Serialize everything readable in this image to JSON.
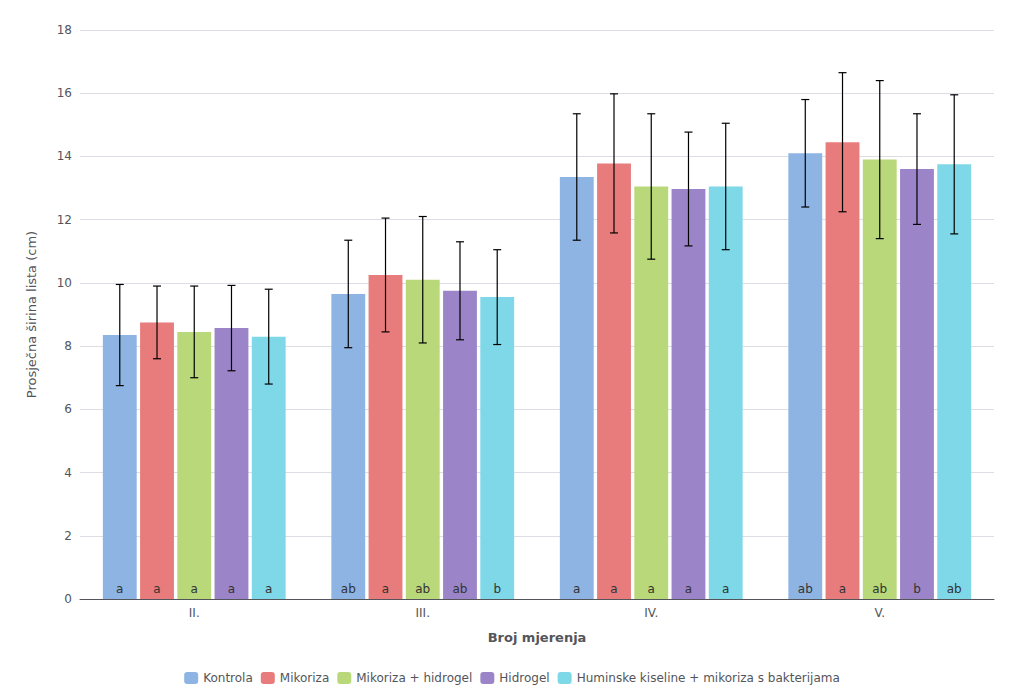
{
  "chart_data": {
    "type": "bar",
    "xlabel": "Broj mjerenja",
    "ylabel": "Prosječna širina lista (cm)",
    "categories": [
      "II.",
      "III.",
      "IV.",
      "V."
    ],
    "series": [
      {
        "name": "Kontrola",
        "color": "#8EB4E3",
        "values": [
          8.35,
          9.65,
          13.35,
          14.1
        ],
        "errors": [
          1.6,
          1.7,
          2.0,
          1.7
        ],
        "labels": [
          "a",
          "ab",
          "a",
          "ab"
        ]
      },
      {
        "name": "Mikoriza",
        "color": "#E87B7B",
        "values": [
          8.75,
          10.25,
          13.78,
          14.45
        ],
        "errors": [
          1.15,
          1.8,
          2.2,
          2.2
        ],
        "labels": [
          "a",
          "a",
          "a",
          "a"
        ]
      },
      {
        "name": "Mikoriza + hidrogel",
        "color": "#B8D87A",
        "values": [
          8.45,
          10.1,
          13.05,
          13.9
        ],
        "errors": [
          1.45,
          2.0,
          2.3,
          2.5
        ],
        "labels": [
          "a",
          "ab",
          "a",
          "ab"
        ]
      },
      {
        "name": "Hidrogel",
        "color": "#9B85C8",
        "values": [
          8.57,
          9.75,
          12.97,
          13.6
        ],
        "errors": [
          1.35,
          1.55,
          1.8,
          1.75
        ],
        "labels": [
          "a",
          "ab",
          "a",
          "b"
        ]
      },
      {
        "name": "Huminske kiseline + mikoriza s bakterijama",
        "color": "#7ED8E8",
        "values": [
          8.3,
          9.55,
          13.05,
          13.75
        ],
        "errors": [
          1.5,
          1.5,
          2.0,
          2.2
        ],
        "labels": [
          "a",
          "b",
          "a",
          "ab"
        ]
      }
    ],
    "ylim": [
      0,
      18
    ],
    "yticks": [
      0,
      2,
      4,
      6,
      8,
      10,
      12,
      14,
      16,
      18
    ],
    "grid": true,
    "legend": "bottom"
  }
}
